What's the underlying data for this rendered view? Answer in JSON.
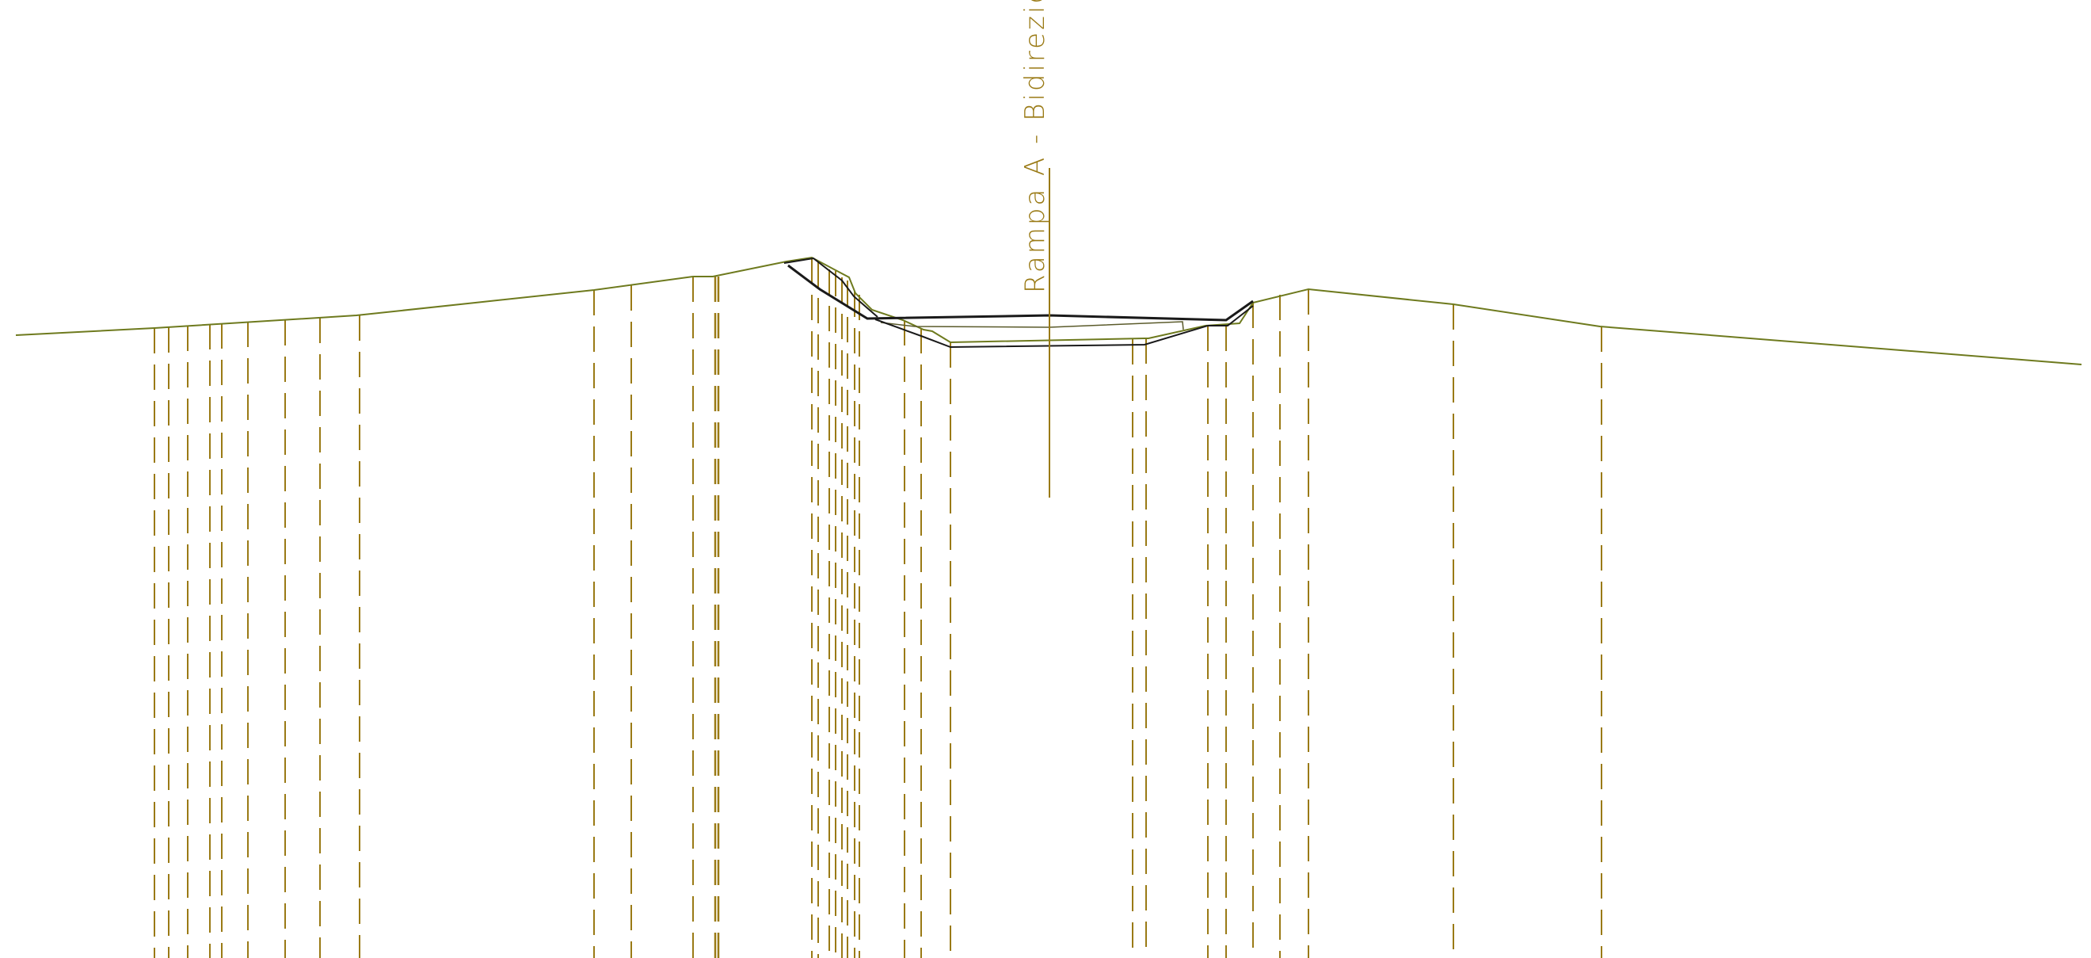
{
  "drawing": {
    "axis_label": "Rampa  A  -  Bidirezionale",
    "colors": {
      "ground_line": "#6e7a1e",
      "reference_lines": "#9a7a15",
      "road_section": "#1a1a1a",
      "layer_lines": "#5a5a2a",
      "label": "#9a7a15",
      "background": "#ffffff"
    }
  }
}
